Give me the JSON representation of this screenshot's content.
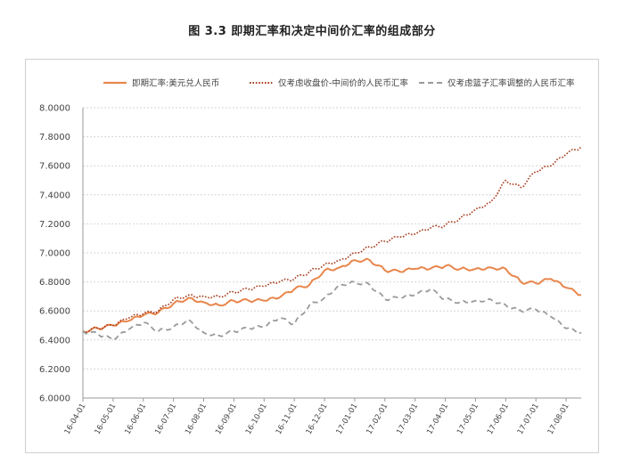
{
  "title": "图 3.3 即期汇率和决定中间价汇率的组成部分",
  "chart_data": {
    "type": "line",
    "title": "图 3.3 即期汇率和决定中间价汇率的组成部分",
    "xlabel": "",
    "ylabel": "",
    "ylim": [
      6.0,
      8.0
    ],
    "y_ticks": [
      "6.0000",
      "6.2000",
      "6.4000",
      "6.6000",
      "6.8000",
      "7.0000",
      "7.2000",
      "7.4000",
      "7.6000",
      "7.8000",
      "8.0000"
    ],
    "grid": "horizontal",
    "legend_position": "top",
    "x_ticks": [
      "16-04-01",
      "16-05-01",
      "16-06-01",
      "16-07-01",
      "16-08-01",
      "16-09-01",
      "16-10-01",
      "16-11-01",
      "16-12-01",
      "17-01-01",
      "17-02-01",
      "17-03-01",
      "17-04-01",
      "17-05-01",
      "17-06-01",
      "17-07-01",
      "17-08-01"
    ],
    "x": [
      "16-04-01",
      "16-04-15",
      "16-05-01",
      "16-05-15",
      "16-06-01",
      "16-06-15",
      "16-07-01",
      "16-07-15",
      "16-08-01",
      "16-08-15",
      "16-09-01",
      "16-09-15",
      "16-10-01",
      "16-10-15",
      "16-11-01",
      "16-11-15",
      "16-12-01",
      "16-12-15",
      "17-01-01",
      "17-01-15",
      "17-02-01",
      "17-02-15",
      "17-03-01",
      "17-03-15",
      "17-04-01",
      "17-04-15",
      "17-05-01",
      "17-05-15",
      "17-06-01",
      "17-06-15",
      "17-07-01",
      "17-07-15",
      "17-08-01",
      "17-08-15"
    ],
    "series": [
      {
        "name": "即期汇率:美元兑人民币",
        "color": "#E8864C",
        "dash": "solid",
        "values": [
          6.46,
          6.48,
          6.5,
          6.53,
          6.57,
          6.59,
          6.65,
          6.69,
          6.66,
          6.64,
          6.67,
          6.67,
          6.67,
          6.69,
          6.75,
          6.78,
          6.88,
          6.9,
          6.95,
          6.95,
          6.88,
          6.87,
          6.89,
          6.89,
          6.91,
          6.89,
          6.89,
          6.9,
          6.89,
          6.8,
          6.79,
          6.82,
          6.76,
          6.71
        ]
      },
      {
        "name": "仅考虑收盘价-中间价的人民币汇率",
        "color": "#A63A1A",
        "dash": "dotted",
        "values": [
          6.46,
          6.48,
          6.5,
          6.55,
          6.58,
          6.6,
          6.68,
          6.71,
          6.7,
          6.7,
          6.73,
          6.75,
          6.77,
          6.8,
          6.82,
          6.87,
          6.92,
          6.95,
          7.0,
          7.04,
          7.08,
          7.11,
          7.13,
          7.17,
          7.19,
          7.24,
          7.3,
          7.35,
          7.5,
          7.45,
          7.56,
          7.6,
          7.68,
          7.73
        ]
      },
      {
        "name": "仅考虑篮子汇率调整的人民币汇率",
        "color": "#9A9A9A",
        "dash": "dashed",
        "values": [
          6.46,
          6.44,
          6.4,
          6.47,
          6.52,
          6.46,
          6.49,
          6.54,
          6.45,
          6.43,
          6.46,
          6.48,
          6.49,
          6.55,
          6.51,
          6.64,
          6.69,
          6.78,
          6.8,
          6.78,
          6.68,
          6.69,
          6.71,
          6.75,
          6.68,
          6.66,
          6.67,
          6.68,
          6.64,
          6.6,
          6.61,
          6.56,
          6.48,
          6.45
        ]
      }
    ]
  }
}
